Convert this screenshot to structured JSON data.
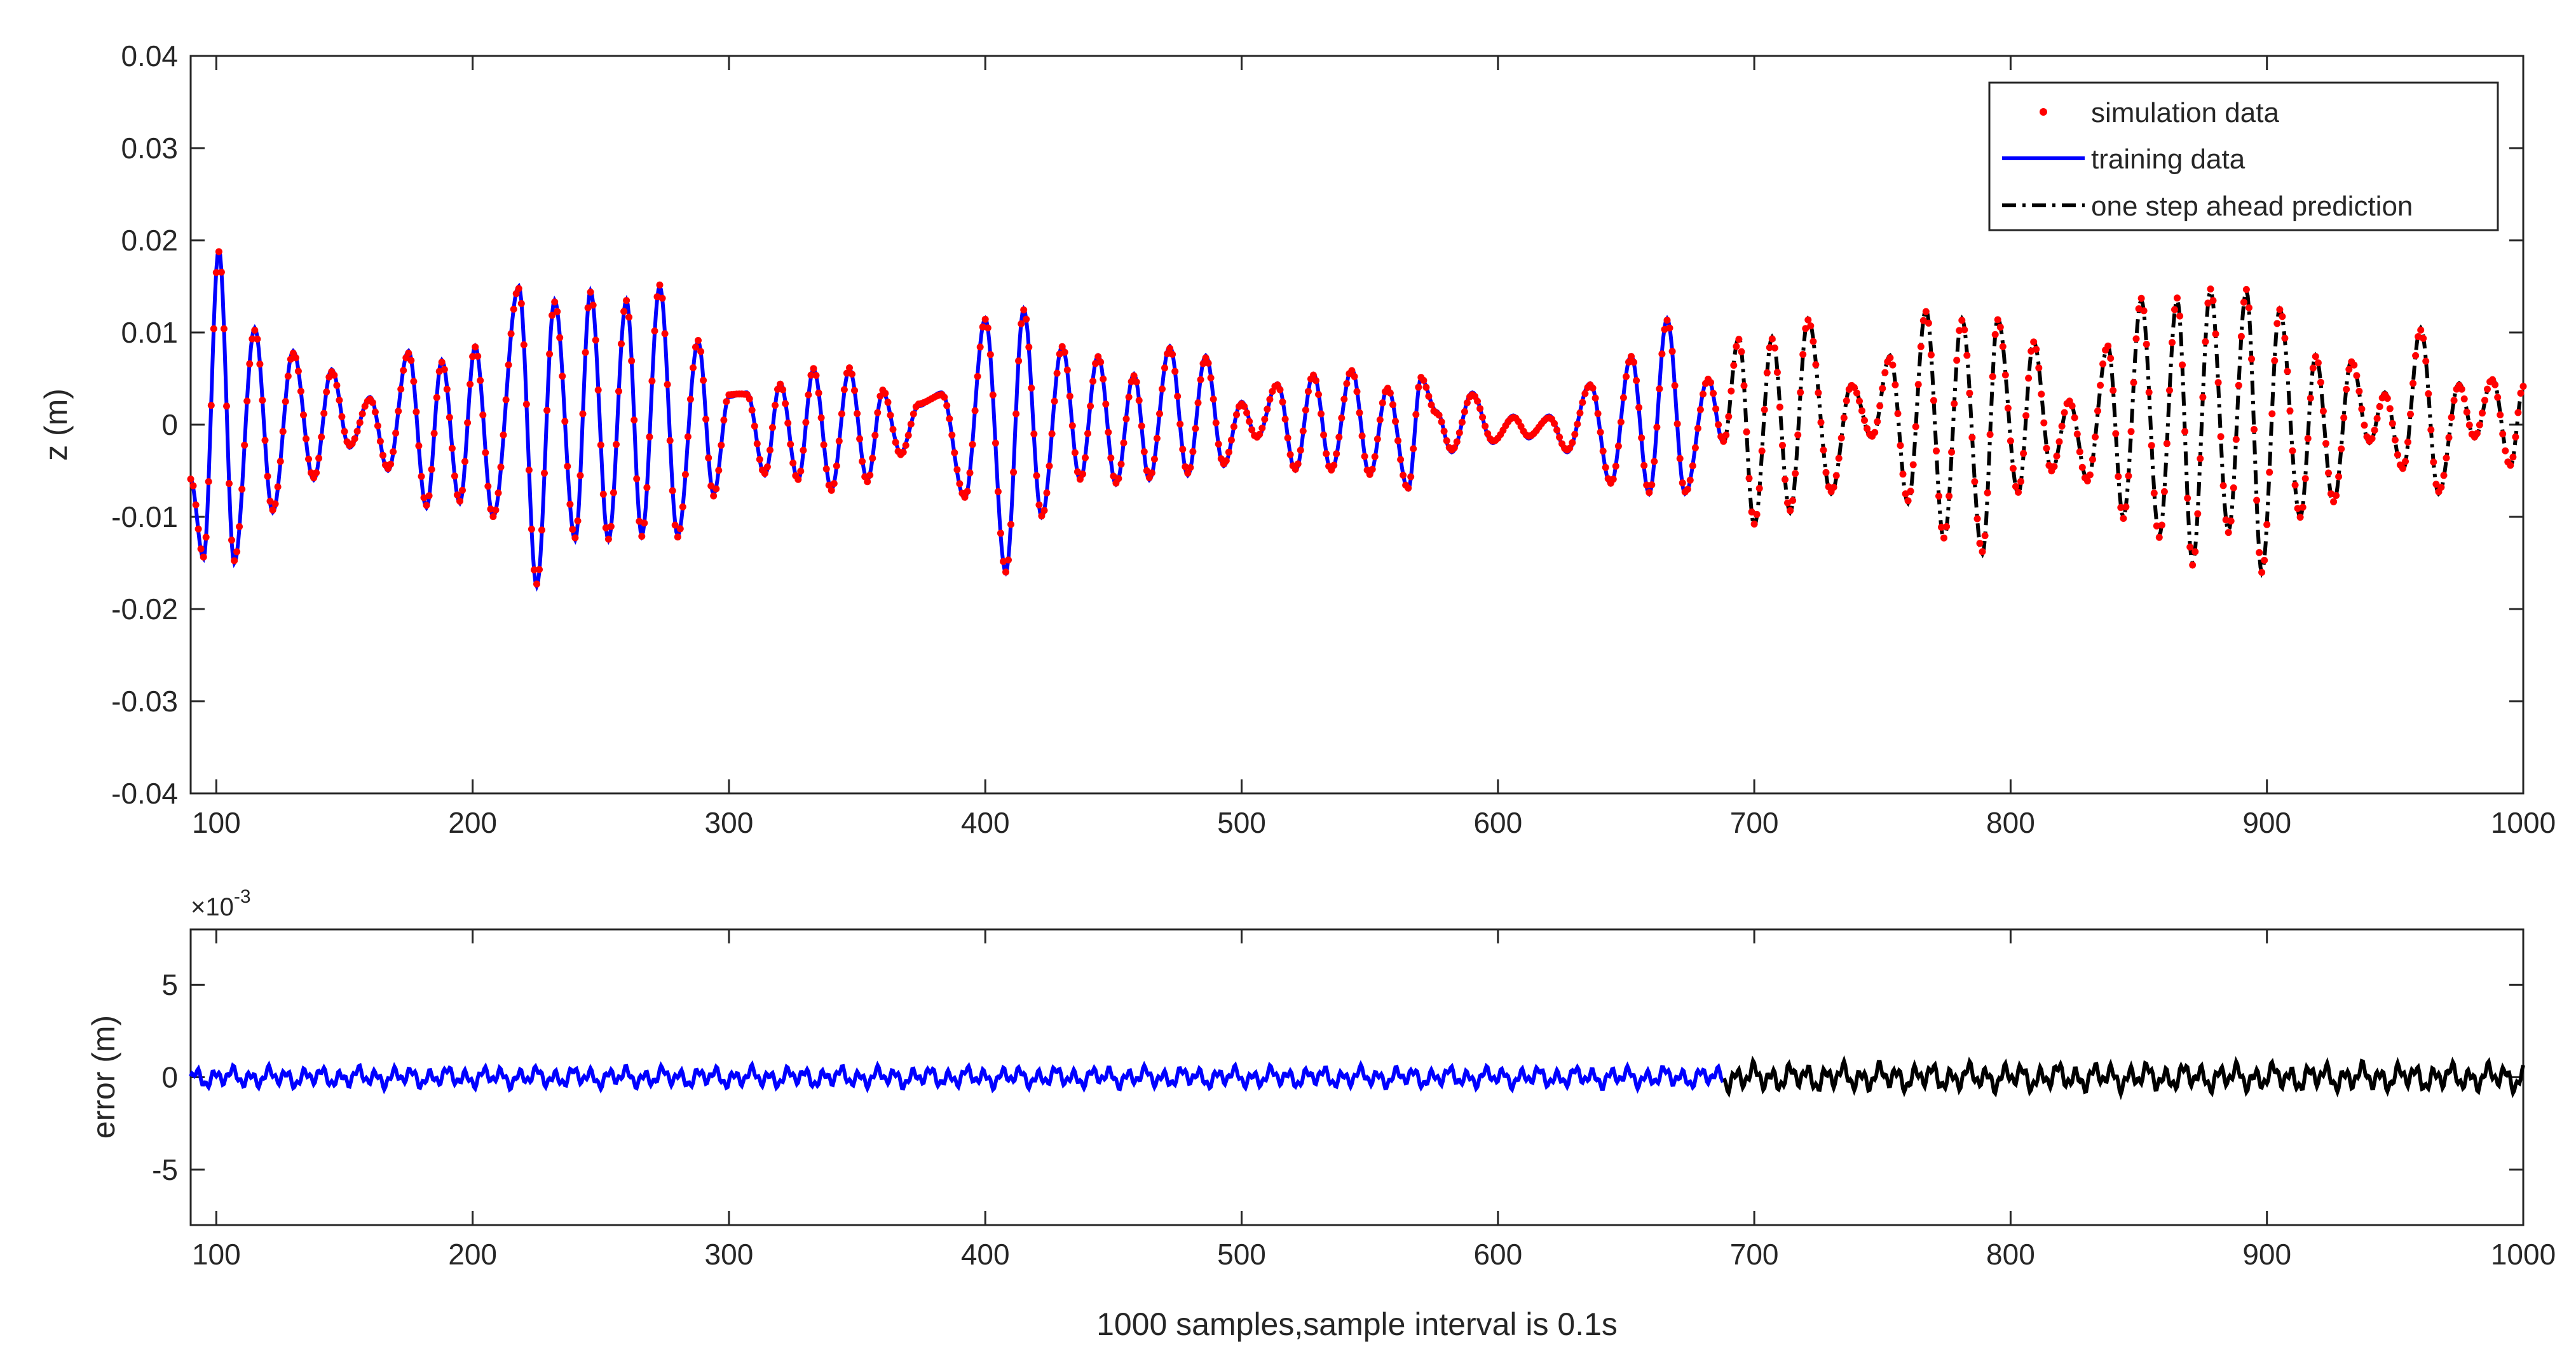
{
  "chart_data": [
    {
      "type": "line",
      "ylabel": "z (m)",
      "xlim": [
        90,
        1000
      ],
      "ylim": [
        -0.04,
        0.04
      ],
      "x_ticks": [
        "100",
        "200",
        "300",
        "400",
        "500",
        "600",
        "700",
        "800",
        "900",
        "1000"
      ],
      "y_ticks": [
        "-0.04",
        "-0.03",
        "-0.02",
        "-0.01",
        "0",
        "0.01",
        "0.02",
        "0.03",
        "0.04"
      ],
      "legend": {
        "position": "top-right",
        "entries": [
          "simulation data",
          "training data",
          "one step ahead prediction"
        ]
      },
      "series": [
        {
          "name": "simulation data",
          "style": "markers",
          "color": "#ff0000",
          "x_range": [
            90,
            1000
          ],
          "description_points": [
            [
              90,
              -0.006
            ],
            [
              95,
              -0.0145
            ],
            [
              101,
              0.019
            ],
            [
              107,
              -0.015
            ],
            [
              115,
              0.0105
            ],
            [
              122,
              -0.0095
            ],
            [
              130,
              0.008
            ],
            [
              138,
              -0.006
            ],
            [
              145,
              0.006
            ],
            [
              152,
              -0.0025
            ],
            [
              160,
              0.003
            ],
            [
              167,
              -0.005
            ],
            [
              175,
              0.008
            ],
            [
              182,
              -0.009
            ],
            [
              188,
              0.007
            ],
            [
              195,
              -0.0085
            ],
            [
              201,
              0.0085
            ],
            [
              208,
              -0.01
            ],
            [
              218,
              0.015
            ],
            [
              225,
              -0.0175
            ],
            [
              232,
              0.0135
            ],
            [
              240,
              -0.0125
            ],
            [
              246,
              0.0145
            ],
            [
              253,
              -0.0125
            ],
            [
              260,
              0.0135
            ],
            [
              266,
              -0.012
            ],
            [
              273,
              0.015
            ],
            [
              280,
              -0.012
            ],
            [
              288,
              0.009
            ],
            [
              294,
              -0.0075
            ],
            [
              300,
              0.003
            ],
            [
              307,
              0.0035
            ],
            [
              314,
              -0.0055
            ],
            [
              320,
              0.0045
            ],
            [
              327,
              -0.006
            ],
            [
              333,
              0.006
            ],
            [
              340,
              -0.007
            ],
            [
              347,
              0.006
            ],
            [
              354,
              -0.006
            ],
            [
              360,
              0.0035
            ],
            [
              367,
              -0.003
            ],
            [
              374,
              0.002
            ],
            [
              383,
              0.0035
            ],
            [
              392,
              -0.008
            ],
            [
              400,
              0.0115
            ],
            [
              408,
              -0.016
            ],
            [
              415,
              0.0125
            ],
            [
              422,
              -0.01
            ],
            [
              430,
              0.0085
            ],
            [
              437,
              -0.006
            ],
            [
              444,
              0.0075
            ],
            [
              451,
              -0.0065
            ],
            [
              458,
              0.0055
            ],
            [
              464,
              -0.006
            ],
            [
              472,
              0.0085
            ],
            [
              479,
              -0.0055
            ],
            [
              486,
              0.0075
            ],
            [
              493,
              -0.0045
            ],
            [
              500,
              0.0025
            ],
            [
              506,
              -0.0015
            ],
            [
              514,
              0.0045
            ],
            [
              521,
              -0.005
            ],
            [
              528,
              0.0055
            ],
            [
              535,
              -0.005
            ],
            [
              543,
              0.006
            ],
            [
              550,
              -0.0055
            ],
            [
              557,
              0.004
            ],
            [
              565,
              -0.007
            ],
            [
              570,
              0.005
            ],
            [
              576,
              0.0015
            ],
            [
              582,
              -0.003
            ],
            [
              590,
              0.0035
            ],
            [
              598,
              -0.002
            ],
            [
              606,
              0.001
            ],
            [
              612,
              -0.0015
            ],
            [
              620,
              0.001
            ],
            [
              627,
              -0.003
            ],
            [
              636,
              0.0045
            ],
            [
              644,
              -0.0065
            ],
            [
              652,
              0.0075
            ],
            [
              659,
              -0.0075
            ],
            [
              666,
              0.0115
            ],
            [
              673,
              -0.0075
            ],
            [
              682,
              0.005
            ],
            [
              688,
              -0.002
            ],
            [
              694,
              0.0095
            ],
            [
              700,
              -0.011
            ],
            [
              707,
              0.0095
            ],
            [
              714,
              -0.0095
            ],
            [
              721,
              0.0115
            ],
            [
              730,
              -0.0075
            ],
            [
              738,
              0.0045
            ],
            [
              746,
              -0.0015
            ],
            [
              753,
              0.0075
            ],
            [
              760,
              -0.0085
            ],
            [
              767,
              0.0125
            ],
            [
              774,
              -0.0125
            ],
            [
              781,
              0.0115
            ],
            [
              789,
              -0.014
            ],
            [
              795,
              0.0115
            ],
            [
              803,
              -0.0075
            ],
            [
              809,
              0.009
            ],
            [
              816,
              -0.005
            ],
            [
              823,
              0.0025
            ],
            [
              830,
              -0.006
            ],
            [
              838,
              0.0085
            ],
            [
              844,
              -0.01
            ],
            [
              851,
              0.0135
            ],
            [
              858,
              -0.012
            ],
            [
              865,
              0.0135
            ],
            [
              871,
              -0.015
            ],
            [
              878,
              0.0145
            ],
            [
              885,
              -0.0115
            ],
            [
              892,
              0.0145
            ],
            [
              898,
              -0.016
            ],
            [
              905,
              0.0125
            ],
            [
              913,
              -0.01
            ],
            [
              919,
              0.0075
            ],
            [
              926,
              -0.0085
            ],
            [
              933,
              0.007
            ],
            [
              940,
              -0.002
            ],
            [
              946,
              0.0035
            ],
            [
              953,
              -0.005
            ],
            [
              960,
              0.0105
            ],
            [
              967,
              -0.0075
            ],
            [
              975,
              0.0045
            ],
            [
              981,
              -0.0015
            ],
            [
              988,
              0.005
            ],
            [
              995,
              -0.0045
            ],
            [
              1000,
              0.004
            ]
          ]
        },
        {
          "name": "training data",
          "style": "solid",
          "color": "#0000ff",
          "x_range": [
            90,
            688
          ]
        },
        {
          "name": "one step ahead prediction",
          "style": "dash-dot",
          "color": "#000000",
          "x_range": [
            688,
            1000
          ]
        }
      ]
    },
    {
      "type": "line",
      "ylabel": "error (m)",
      "xlabel": "1000 samples,sample interval is 0.1s",
      "exponent_label": "×10",
      "exponent_power": "-3",
      "xlim": [
        90,
        1000
      ],
      "ylim": [
        -8,
        8
      ],
      "y_unit_scale": 0.001,
      "x_ticks": [
        "100",
        "200",
        "300",
        "400",
        "500",
        "600",
        "700",
        "800",
        "900",
        "1000"
      ],
      "y_ticks": [
        "-5",
        "0",
        "5"
      ],
      "series": [
        {
          "name": "training data",
          "style": "solid",
          "color": "#0000ff",
          "x_range": [
            90,
            688
          ],
          "typical_amplitude": 0.6,
          "max_abs": 1.3
        },
        {
          "name": "one step ahead prediction",
          "style": "solid",
          "color": "#000000",
          "x_range": [
            688,
            1000
          ],
          "typical_amplitude": 0.8,
          "max_abs": 1.4
        }
      ]
    }
  ]
}
